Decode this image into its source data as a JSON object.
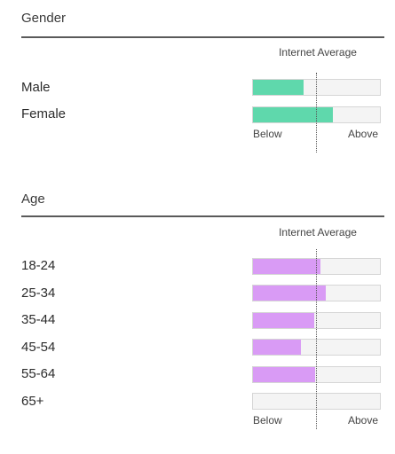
{
  "colors": {
    "gender_fill": "#5fd8ac",
    "age_fill": "#d99bf5"
  },
  "gender": {
    "title": "Gender",
    "average_label": "Internet Average",
    "axis_below": "Below",
    "axis_above": "Above",
    "rows": [
      {
        "label": "Male",
        "value": 0.4
      },
      {
        "label": "Female",
        "value": 0.63
      }
    ]
  },
  "age": {
    "title": "Age",
    "average_label": "Internet Average",
    "axis_below": "Below",
    "axis_above": "Above",
    "rows": [
      {
        "label": "18-24",
        "value": 0.53
      },
      {
        "label": "25-34",
        "value": 0.57
      },
      {
        "label": "35-44",
        "value": 0.48
      },
      {
        "label": "45-54",
        "value": 0.38
      },
      {
        "label": "55-64",
        "value": 0.49
      },
      {
        "label": "65+",
        "value": 0.0
      }
    ]
  }
}
